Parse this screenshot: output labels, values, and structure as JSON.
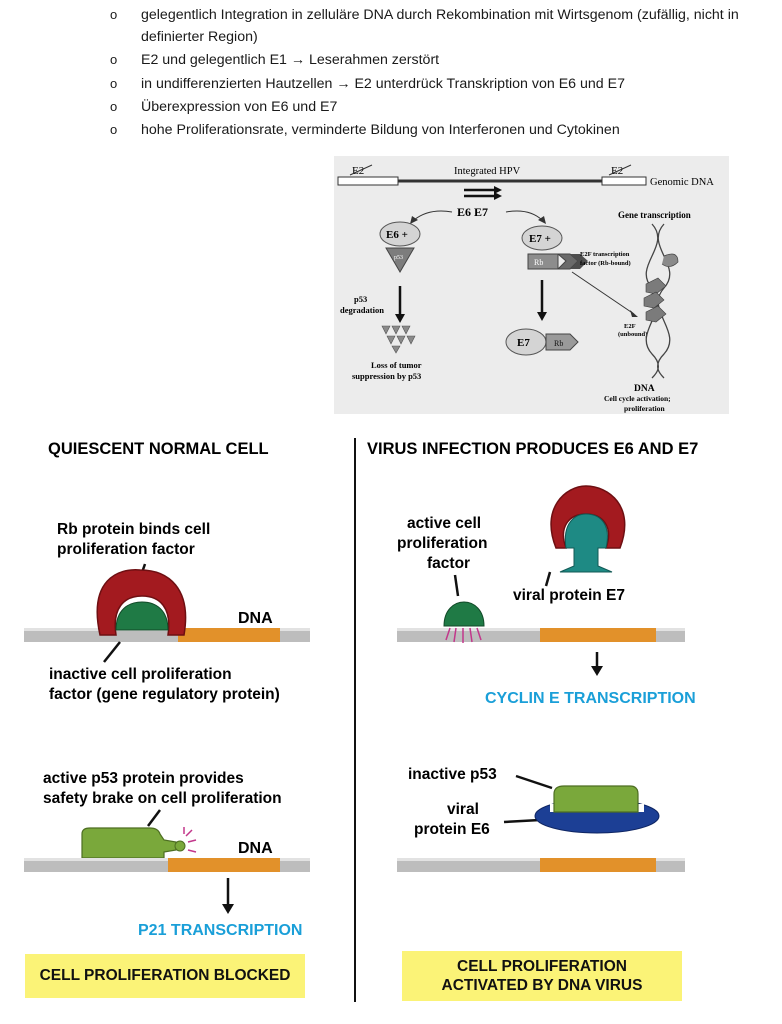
{
  "bullets": {
    "marker": "o",
    "items": [
      {
        "line1": "gelegentlich Integration in zelluläre DNA durch Rekombination mit Wirtsgenom (zufällig, nicht in",
        "line2": "definierter Region)"
      },
      {
        "line1": "E2 und gelegentlich E1 → Leserahmen zerstört",
        "line2": ""
      },
      {
        "line1": "in undifferenzierten Hautzellen → E2 unterdrück Transkription von E6 und E7",
        "line2": ""
      },
      {
        "line1": "Überexpression von E6 und E7",
        "line2": ""
      },
      {
        "line1": "hohe Proliferationsrate, verminderte Bildung von Interferonen und Cytokinen",
        "line2": ""
      }
    ]
  },
  "hpv_figure": {
    "e2_left": "E2",
    "e2_right": "E2",
    "integrated": "Integrated HPV",
    "genomic": "Genomic DNA",
    "e6e7": "E6  E7",
    "e6_plus": "E6 +",
    "p53_small": "p53",
    "e7_plus": "E7 +",
    "rb": "Rb",
    "e2f_tf_line1": "E2F transcription",
    "e2f_tf_line2": "factor (Rb-bound)",
    "p53_degradation_line1": "p53",
    "p53_degradation_line2": "degradation",
    "gene_transcription": "Gene transcription",
    "e2f_unbound_line1": "E2F",
    "e2f_unbound_line2": "(unbound)",
    "e7": "E7",
    "rb2": "Rb",
    "loss_line1": "Loss of tumor",
    "loss_line2": "suppression  by p53",
    "dna": "DNA",
    "cellcycle_line1": "Cell cycle activation;",
    "cellcycle_line2": "proliferation"
  },
  "left_panel": {
    "heading": "QUIESCENT NORMAL CELL",
    "rb_label_line1": "Rb protein binds cell",
    "rb_label_line2": "proliferation factor",
    "dna1": "DNA",
    "inactive_line1": "inactive cell proliferation",
    "inactive_line2": "factor (gene regulatory protein)",
    "p53_line1": "active p53 protein provides",
    "p53_line2": "safety brake on cell proliferation",
    "dna2": "DNA",
    "p21": "P21 TRANSCRIPTION",
    "blocked": "CELL PROLIFERATION BLOCKED"
  },
  "right_panel": {
    "heading": "VIRUS INFECTION PRODUCES E6 AND E7",
    "active_line1": "active cell",
    "active_line2": "proliferation",
    "active_line3": "factor",
    "e7_label": "viral protein E7",
    "cyclin": "CYCLIN E TRANSCRIPTION",
    "inactive_p53": "inactive p53",
    "e6_line1": "viral",
    "e6_line2": "protein E6",
    "activated_line1": "CELL PROLIFERATION",
    "activated_line2": "ACTIVATED BY DNA VIRUS"
  },
  "colors": {
    "rb_red": "#a31a1f",
    "factor_green": "#1f7a45",
    "p53_green": "#7aa83b",
    "e7_teal": "#1e8a84",
    "e6_blue": "#1c3f95",
    "gene_orange": "#e2912a",
    "dna_grey": "#bdbdbd",
    "accent_blue": "#1a9fd8",
    "box_yellow": "#fbf377"
  }
}
